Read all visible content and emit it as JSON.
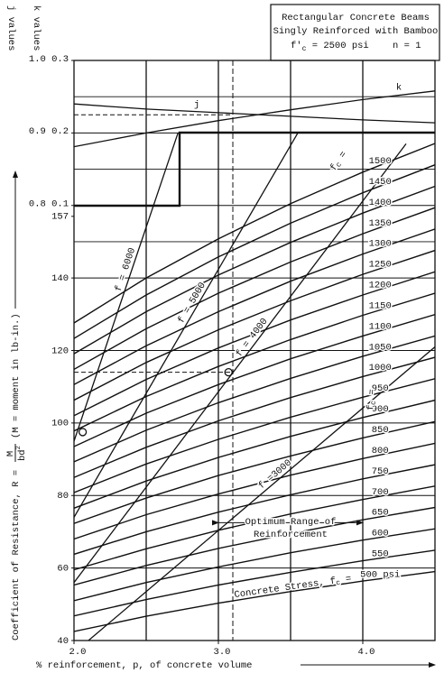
{
  "chart_data": {
    "type": "line",
    "title_lines": [
      "Rectangular Concrete Beams",
      "Singly Reinforced with Bamboo"
    ],
    "title_stress": {
      "f": "f'",
      "sub": "c",
      "rest": " = 2500 psi"
    },
    "title_n": "n = 1",
    "j_axis_label": "j values",
    "k_axis_label": "k values",
    "ylabel": {
      "start": "Coefficient of Resistance, R = ",
      "num": "M",
      "den": "bd",
      "sup": "2",
      "end": "(M = moment in lb-in.)"
    },
    "xlabel": "% reinforcement, p, of concrete volume",
    "xlim": [
      2.0,
      4.5
    ],
    "xticks": [
      {
        "value": 2.0,
        "label": "2.0"
      },
      {
        "value": 3.0,
        "label": "3.0"
      },
      {
        "value": 4.0,
        "label": "4.0"
      }
    ],
    "xgrid": [
      2.5,
      3.0,
      3.5,
      4.0
    ],
    "ylim": [
      40,
      200
    ],
    "yticks": [
      40,
      60,
      80,
      100,
      120,
      140,
      157
    ],
    "ygrid": [
      60,
      80,
      100,
      120,
      140,
      150,
      160,
      170,
      180,
      190
    ],
    "y2lim": [
      0.2,
      1.0
    ],
    "y2ticks": [
      {
        "value": 0.8,
        "label": "0.8 0.1"
      },
      {
        "value": 0.9,
        "label": "0.9 0.2"
      },
      {
        "value": 1.0,
        "label": "1.0 0.3"
      }
    ],
    "k_lim": [
      -0.5,
      0.3
    ],
    "x": [
      2.0,
      2.5,
      3.0,
      3.5,
      4.0,
      4.5
    ],
    "series": [
      {
        "name": "1500",
        "values": [
          127.6,
          140.0,
          150.8,
          160.5,
          169.2,
          177.1
        ]
      },
      {
        "name": "1450",
        "values": [
          123.3,
          135.3,
          145.8,
          155.1,
          163.5,
          171.2
        ]
      },
      {
        "name": "1400",
        "values": [
          119.1,
          130.7,
          140.8,
          149.8,
          157.9,
          165.3
        ]
      },
      {
        "name": "1350",
        "values": [
          114.8,
          126.0,
          135.8,
          144.4,
          152.2,
          159.4
        ]
      },
      {
        "name": "1300",
        "values": [
          110.6,
          121.3,
          130.7,
          139.1,
          146.6,
          153.5
        ]
      },
      {
        "name": "1250",
        "values": [
          106.3,
          116.7,
          125.7,
          133.7,
          141.0,
          147.6
        ]
      },
      {
        "name": "1200",
        "values": [
          102.0,
          112.0,
          120.7,
          128.4,
          135.3,
          141.7
        ]
      },
      {
        "name": "1150",
        "values": [
          97.8,
          107.3,
          115.6,
          123.0,
          129.7,
          135.8
        ]
      },
      {
        "name": "1100",
        "values": [
          93.5,
          102.7,
          110.6,
          117.7,
          124.0,
          129.9
        ]
      },
      {
        "name": "1050",
        "values": [
          89.3,
          98.0,
          105.6,
          112.3,
          118.4,
          124.0
        ]
      },
      {
        "name": "1000",
        "values": [
          85.0,
          93.3,
          100.6,
          107.0,
          112.8,
          118.1
        ]
      },
      {
        "name": "950",
        "values": [
          80.8,
          88.7,
          95.5,
          101.6,
          107.1,
          112.2
        ]
      },
      {
        "name": "900",
        "values": [
          76.5,
          84.0,
          90.5,
          96.3,
          101.5,
          106.3
        ]
      },
      {
        "name": "850",
        "values": [
          72.3,
          79.3,
          85.5,
          90.9,
          95.9,
          100.4
        ]
      },
      {
        "name": "800",
        "values": [
          68.0,
          74.7,
          80.4,
          85.6,
          90.2,
          94.4
        ]
      },
      {
        "name": "750",
        "values": [
          63.8,
          70.0,
          75.4,
          80.2,
          84.6,
          88.5
        ]
      },
      {
        "name": "700",
        "values": [
          59.5,
          65.3,
          70.4,
          74.9,
          78.9,
          82.6
        ]
      },
      {
        "name": "650",
        "values": [
          55.3,
          60.7,
          65.4,
          69.5,
          73.3,
          76.7
        ]
      },
      {
        "name": "600",
        "values": [
          51.0,
          56.0,
          60.3,
          64.2,
          67.7,
          70.8
        ]
      },
      {
        "name": "550",
        "values": [
          46.8,
          51.3,
          55.3,
          58.8,
          62.0,
          64.9
        ]
      },
      {
        "name": "500 psi",
        "values": [
          42.5,
          46.7,
          50.3,
          53.5,
          56.4,
          59.0
        ]
      }
    ],
    "steel_series": [
      {
        "name": "f = 6000",
        "x": [
          2.0,
          2.72
        ],
        "values": [
          95,
          180
        ]
      },
      {
        "name": "f = 5000",
        "x": [
          2.0,
          3.55
        ],
        "values": [
          74,
          180
        ]
      },
      {
        "name": "f = 4000",
        "x": [
          2.0,
          4.3
        ],
        "values": [
          56,
          177
        ]
      },
      {
        "name": "f =3000",
        "x": [
          2.1,
          4.5
        ],
        "values": [
          40,
          121
        ]
      }
    ],
    "j_line": {
      "name": "j",
      "values": [
        0.94,
        0.933,
        0.928,
        0.923,
        0.918,
        0.914
      ]
    },
    "k_line": {
      "name": "k",
      "values": [
        0.181,
        0.2,
        0.217,
        0.232,
        0.246,
        0.258
      ]
    },
    "fc_symbol": {
      "f": "f",
      "sub": "c",
      "eq": " ="
    },
    "concrete_stress": "Concrete Stress, ",
    "optimum_range": {
      "lines": [
        "Optimum Range of",
        "Reinforcement"
      ],
      "from": 3.0,
      "to": 4.0,
      "at": 72.5
    },
    "reference": {
      "p": 3.1,
      "R": 114,
      "j": 0.925
    },
    "example_points": [
      {
        "x": 3.07,
        "y": 114
      },
      {
        "x": 2.06,
        "y": 97.5
      }
    ]
  }
}
